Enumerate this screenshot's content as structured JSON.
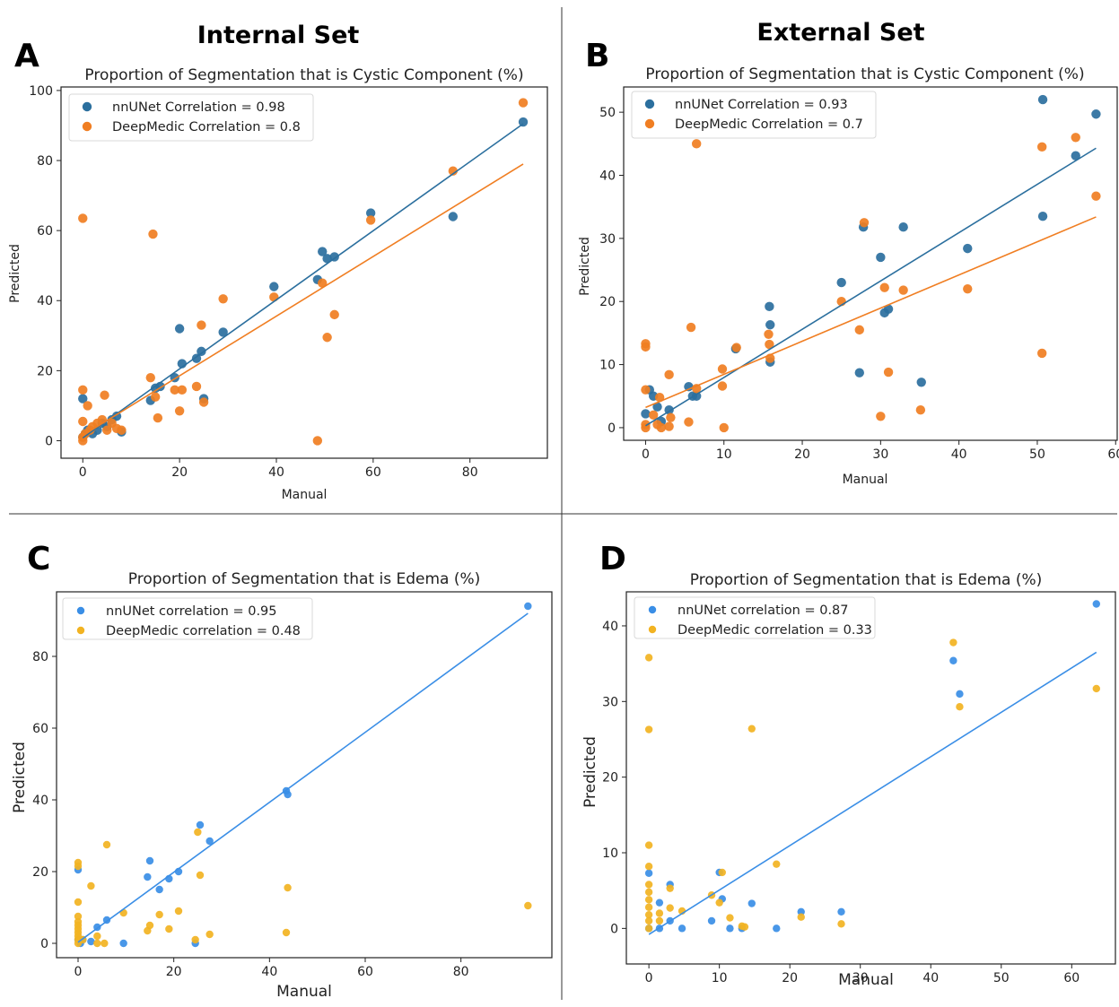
{
  "figure": {
    "set_titles": [
      "Internal Set",
      "External Set"
    ],
    "panel_letters": [
      "A",
      "B",
      "C",
      "D"
    ]
  },
  "colors": {
    "nnunet_cystic": "#2b6f9e",
    "deepmedic_cystic": "#f07e22",
    "nnunet_edema": "#3a8ee6",
    "deepmedic_edema": "#f2b322"
  },
  "chart_data": [
    {
      "id": "A",
      "type": "scatter",
      "title": "Proportion of Segmentation that is Cystic Component (%)",
      "xlabel": "Manual",
      "ylabel": "Predicted",
      "xticks": [
        0,
        20,
        40,
        60,
        80
      ],
      "yticks": [
        0,
        20,
        40,
        60,
        80,
        100
      ],
      "xlim": [
        -4.5,
        96
      ],
      "ylim": [
        -5,
        101
      ],
      "grid": false,
      "legend_position": "top-left",
      "series": [
        {
          "name": "nnUNet Correlation = 0.98",
          "color_key": "nnunet_cystic",
          "fit": [
            [
              0,
              0.8
            ],
            [
              91,
              90.5
            ]
          ],
          "points": [
            [
              0,
              12
            ],
            [
              0,
              1
            ],
            [
              0.5,
              2
            ],
            [
              1,
              3
            ],
            [
              2,
              2
            ],
            [
              3,
              3
            ],
            [
              4,
              5
            ],
            [
              5,
              4
            ],
            [
              6,
              6
            ],
            [
              7,
              7
            ],
            [
              8,
              2.5
            ],
            [
              14,
              11.5
            ],
            [
              15,
              15
            ],
            [
              16,
              15.5
            ],
            [
              19,
              18
            ],
            [
              20,
              32
            ],
            [
              20.5,
              22
            ],
            [
              23.5,
              23.5
            ],
            [
              24.5,
              25.5
            ],
            [
              25,
              12
            ],
            [
              29,
              31
            ],
            [
              39.5,
              44
            ],
            [
              48.5,
              46
            ],
            [
              49.5,
              54
            ],
            [
              50.5,
              52
            ],
            [
              52,
              52.5
            ],
            [
              59.5,
              65
            ],
            [
              76.5,
              64
            ],
            [
              91,
              91
            ]
          ]
        },
        {
          "name": "DeepMedic Correlation = 0.8",
          "color_key": "deepmedic_cystic",
          "fit": [
            [
              0,
              1.5
            ],
            [
              91,
              79
            ]
          ],
          "points": [
            [
              0,
              63.5
            ],
            [
              0,
              14.5
            ],
            [
              0,
              5.5
            ],
            [
              0,
              1
            ],
            [
              0,
              0
            ],
            [
              0.5,
              2
            ],
            [
              1,
              10
            ],
            [
              1.5,
              3
            ],
            [
              2,
              4
            ],
            [
              3,
              5
            ],
            [
              4,
              6
            ],
            [
              4.5,
              13
            ],
            [
              5,
              3
            ],
            [
              6,
              5
            ],
            [
              7,
              3.5
            ],
            [
              8,
              3
            ],
            [
              14,
              18
            ],
            [
              14.5,
              59
            ],
            [
              15,
              12.5
            ],
            [
              15.5,
              6.5
            ],
            [
              19,
              14.5
            ],
            [
              20,
              8.5
            ],
            [
              20.5,
              14.5
            ],
            [
              23.5,
              15.5
            ],
            [
              24.5,
              33
            ],
            [
              25,
              11
            ],
            [
              29,
              40.5
            ],
            [
              39.5,
              41
            ],
            [
              48.5,
              0
            ],
            [
              49.5,
              45
            ],
            [
              50.5,
              29.5
            ],
            [
              52,
              36
            ],
            [
              59.5,
              63
            ],
            [
              76.5,
              77
            ],
            [
              91,
              96.5
            ]
          ]
        }
      ]
    },
    {
      "id": "B",
      "type": "scatter",
      "title": "Proportion of Segmentation that is Cystic Component (%)",
      "xlabel": "Manual",
      "ylabel": "Predicted",
      "xticks": [
        0,
        10,
        20,
        30,
        40,
        50,
        60
      ],
      "yticks": [
        0,
        10,
        20,
        30,
        40,
        50
      ],
      "xlim": [
        -2.8,
        60.2
      ],
      "ylim": [
        -2,
        54
      ],
      "grid": false,
      "legend_position": "top-left",
      "series": [
        {
          "name": "nnUNet Correlation = 0.93",
          "color_key": "nnunet_cystic",
          "fit": [
            [
              0,
              0.3
            ],
            [
              57.5,
              44.3
            ]
          ],
          "points": [
            [
              0,
              2.2
            ],
            [
              0.5,
              6
            ],
            [
              1,
              5
            ],
            [
              1.5,
              3.3
            ],
            [
              2,
              1
            ],
            [
              3,
              2.8
            ],
            [
              5.5,
              6.5
            ],
            [
              6,
              5
            ],
            [
              6.5,
              5
            ],
            [
              11.5,
              12.5
            ],
            [
              15.8,
              19.2
            ],
            [
              15.9,
              16.3
            ],
            [
              15.9,
              10.4
            ],
            [
              25,
              23
            ],
            [
              27.3,
              8.7
            ],
            [
              27.8,
              31.8
            ],
            [
              30,
              27
            ],
            [
              30.5,
              18.2
            ],
            [
              31,
              18.8
            ],
            [
              32.9,
              31.8
            ],
            [
              35.2,
              7.2
            ],
            [
              41.1,
              28.4
            ],
            [
              50.7,
              52
            ],
            [
              50.7,
              33.5
            ],
            [
              54.9,
              43.1
            ],
            [
              57.5,
              49.7
            ]
          ]
        },
        {
          "name": "DeepMedic Correlation = 0.7",
          "color_key": "deepmedic_cystic",
          "fit": [
            [
              0,
              3.2
            ],
            [
              57.5,
              33.4
            ]
          ],
          "points": [
            [
              0,
              13.3
            ],
            [
              0,
              12.8
            ],
            [
              0,
              6
            ],
            [
              0,
              0.5
            ],
            [
              0,
              0
            ],
            [
              1,
              2
            ],
            [
              1.5,
              0.5
            ],
            [
              1.8,
              4.8
            ],
            [
              2,
              0
            ],
            [
              3,
              8.4
            ],
            [
              3,
              0.2
            ],
            [
              3.2,
              1.6
            ],
            [
              5.5,
              0.9
            ],
            [
              5.8,
              15.9
            ],
            [
              6.5,
              45
            ],
            [
              6.5,
              6.2
            ],
            [
              9.8,
              9.3
            ],
            [
              9.8,
              6.6
            ],
            [
              10,
              0
            ],
            [
              11.6,
              12.7
            ],
            [
              15.7,
              14.8
            ],
            [
              15.8,
              13.2
            ],
            [
              15.9,
              11
            ],
            [
              25,
              20
            ],
            [
              27.3,
              15.5
            ],
            [
              27.9,
              32.5
            ],
            [
              30,
              1.8
            ],
            [
              30.5,
              22.2
            ],
            [
              31,
              8.8
            ],
            [
              32.9,
              21.8
            ],
            [
              35.1,
              2.8
            ],
            [
              41.1,
              22
            ],
            [
              50.6,
              44.5
            ],
            [
              50.6,
              11.8
            ],
            [
              54.9,
              46
            ],
            [
              57.5,
              36.7
            ]
          ]
        }
      ]
    },
    {
      "id": "C",
      "type": "scatter",
      "title": "Proportion of Segmentation that is Edema (%)",
      "xlabel": "Manual",
      "ylabel": "Predicted",
      "xticks": [
        0,
        20,
        40,
        60,
        80
      ],
      "yticks": [
        0,
        20,
        40,
        60,
        80
      ],
      "xlim": [
        -4.5,
        99
      ],
      "ylim": [
        -4,
        98
      ],
      "grid": false,
      "legend_position": "top-left",
      "series": [
        {
          "name": "nnUNet correlation = 0.95",
          "color_key": "nnunet_edema",
          "fit": [
            [
              0,
              0.3
            ],
            [
              94,
              92
            ]
          ],
          "points": [
            [
              0,
              20.5
            ],
            [
              0,
              1
            ],
            [
              0.5,
              0
            ],
            [
              1,
              1
            ],
            [
              2.7,
              0.5
            ],
            [
              4,
              4.5
            ],
            [
              6,
              6.5
            ],
            [
              9.5,
              0
            ],
            [
              14.5,
              18.5
            ],
            [
              15,
              23
            ],
            [
              17,
              15
            ],
            [
              19,
              18
            ],
            [
              21,
              20
            ],
            [
              24.5,
              0
            ],
            [
              25.5,
              33
            ],
            [
              27.5,
              28.5
            ],
            [
              43.5,
              42.5
            ],
            [
              43.8,
              41.5
            ],
            [
              94,
              94
            ]
          ]
        },
        {
          "name": "DeepMedic correlation = 0.48",
          "color_key": "deepmedic_edema",
          "fit": null,
          "points": [
            [
              0,
              22.5
            ],
            [
              0,
              21.5
            ],
            [
              0,
              11.5
            ],
            [
              0,
              7.5
            ],
            [
              0,
              6
            ],
            [
              0,
              5
            ],
            [
              0,
              4
            ],
            [
              0,
              3
            ],
            [
              0,
              2
            ],
            [
              0,
              1
            ],
            [
              0,
              0
            ],
            [
              1,
              1
            ],
            [
              2.7,
              16
            ],
            [
              4,
              2
            ],
            [
              4,
              0
            ],
            [
              5.5,
              0
            ],
            [
              6,
              27.5
            ],
            [
              9.5,
              8.5
            ],
            [
              14.5,
              3.5
            ],
            [
              15,
              5
            ],
            [
              17,
              8
            ],
            [
              19,
              4
            ],
            [
              21,
              9
            ],
            [
              24.5,
              1
            ],
            [
              25,
              31
            ],
            [
              25.5,
              19
            ],
            [
              27.5,
              2.5
            ],
            [
              43.5,
              3
            ],
            [
              43.8,
              15.5
            ],
            [
              94,
              10.5
            ]
          ]
        }
      ]
    },
    {
      "id": "D",
      "type": "scatter",
      "title": "Proportion of Segmentation that is Edema (%)",
      "xlabel": "Manual",
      "ylabel": "Predicted",
      "xticks": [
        0,
        10,
        20,
        30,
        40,
        50,
        60
      ],
      "yticks": [
        0,
        10,
        20,
        30,
        40
      ],
      "xlim": [
        -3.2,
        66.2
      ],
      "ylim": [
        -4.7,
        44.5
      ],
      "grid": false,
      "legend_position": "top-left",
      "series": [
        {
          "name": "nnUNet correlation = 0.87",
          "color_key": "nnunet_edema",
          "fit": [
            [
              0,
              -0.8
            ],
            [
              63.5,
              36.5
            ]
          ],
          "points": [
            [
              0,
              7.3
            ],
            [
              0,
              0
            ],
            [
              1.5,
              3.4
            ],
            [
              1.5,
              0
            ],
            [
              3,
              5.8
            ],
            [
              3,
              1
            ],
            [
              4.7,
              0
            ],
            [
              8.9,
              1
            ],
            [
              10,
              7.4
            ],
            [
              10.4,
              3.9
            ],
            [
              11.5,
              0
            ],
            [
              13.2,
              0
            ],
            [
              14.6,
              3.3
            ],
            [
              18.1,
              0
            ],
            [
              21.6,
              2.2
            ],
            [
              27.3,
              2.2
            ],
            [
              43.2,
              35.4
            ],
            [
              44.1,
              31
            ],
            [
              63.5,
              42.9
            ]
          ]
        },
        {
          "name": "DeepMedic correlation = 0.33",
          "color_key": "deepmedic_edema",
          "fit": null,
          "points": [
            [
              0,
              35.8
            ],
            [
              0,
              26.3
            ],
            [
              0,
              11
            ],
            [
              0,
              8.2
            ],
            [
              0,
              5.8
            ],
            [
              0,
              4.8
            ],
            [
              0,
              3.8
            ],
            [
              0,
              2.8
            ],
            [
              0,
              1.8
            ],
            [
              0,
              1
            ],
            [
              0,
              0
            ],
            [
              1.5,
              2
            ],
            [
              1.5,
              1
            ],
            [
              3,
              5.3
            ],
            [
              3,
              2.7
            ],
            [
              4.7,
              2.3
            ],
            [
              8.9,
              4.4
            ],
            [
              10,
              3.4
            ],
            [
              10.4,
              7.4
            ],
            [
              11.5,
              1.4
            ],
            [
              13.2,
              0.3
            ],
            [
              13.6,
              0.2
            ],
            [
              14.6,
              26.4
            ],
            [
              18.1,
              8.5
            ],
            [
              21.6,
              1.5
            ],
            [
              27.3,
              0.6
            ],
            [
              43.2,
              37.8
            ],
            [
              44.1,
              29.3
            ],
            [
              63.5,
              31.7
            ]
          ]
        }
      ]
    }
  ]
}
